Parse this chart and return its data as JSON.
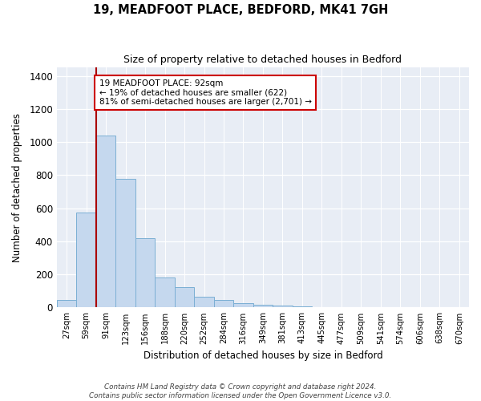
{
  "title": "19, MEADFOOT PLACE, BEDFORD, MK41 7GH",
  "subtitle": "Size of property relative to detached houses in Bedford",
  "xlabel": "Distribution of detached houses by size in Bedford",
  "ylabel": "Number of detached properties",
  "categories": [
    "27sqm",
    "59sqm",
    "91sqm",
    "123sqm",
    "156sqm",
    "188sqm",
    "220sqm",
    "252sqm",
    "284sqm",
    "316sqm",
    "349sqm",
    "381sqm",
    "413sqm",
    "445sqm",
    "477sqm",
    "509sqm",
    "541sqm",
    "574sqm",
    "606sqm",
    "638sqm",
    "670sqm"
  ],
  "values": [
    47,
    575,
    1040,
    780,
    420,
    183,
    125,
    65,
    47,
    25,
    18,
    10,
    5,
    3,
    2,
    1,
    1,
    0,
    0,
    0,
    0
  ],
  "bar_color": "#c5d8ee",
  "bar_edge_color": "#7bafd4",
  "fig_bg": "#ffffff",
  "axes_bg": "#e8edf5",
  "grid_color": "#ffffff",
  "vline_color": "#aa0000",
  "annotation_text": "19 MEADFOOT PLACE: 92sqm\n← 19% of detached houses are smaller (622)\n81% of semi-detached houses are larger (2,701) →",
  "annotation_box_facecolor": "#ffffff",
  "annotation_box_edgecolor": "#cc0000",
  "ylim": [
    0,
    1450
  ],
  "yticks": [
    0,
    200,
    400,
    600,
    800,
    1000,
    1200,
    1400
  ],
  "vline_bin_index": 2,
  "footer": "Contains HM Land Registry data © Crown copyright and database right 2024.\nContains public sector information licensed under the Open Government Licence v3.0."
}
